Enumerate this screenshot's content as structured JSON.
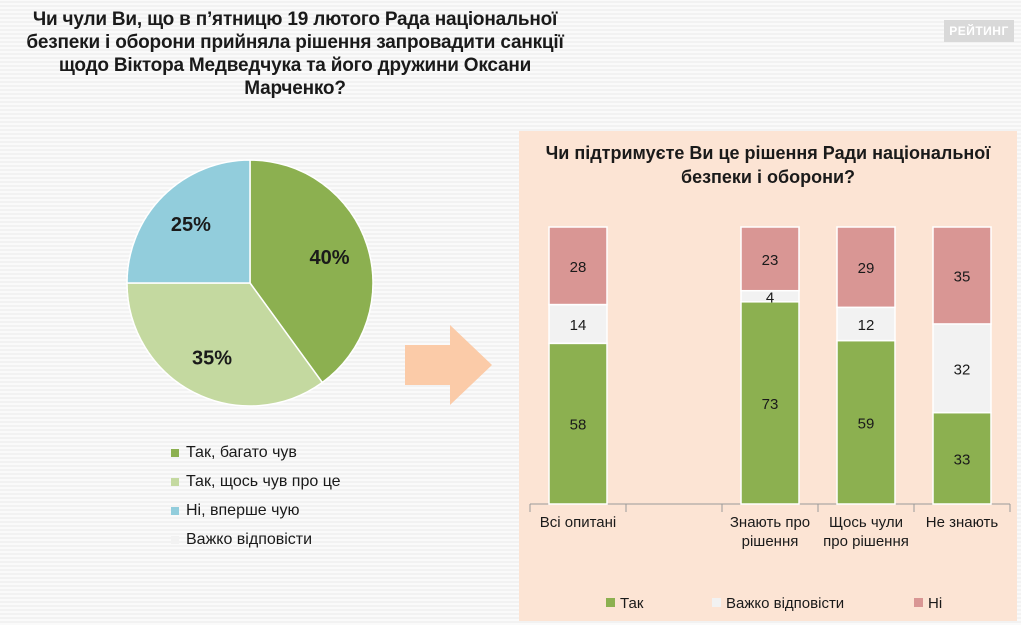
{
  "badge": "РЕЙТИНГ",
  "pie": {
    "title_lines": [
      "Чи чули Ви, що в п’ятницю 19 лютого Рада національної",
      "безпеки і оборони прийняла рішення запровадити санкції",
      "щодо Віктора Медведчука та його дружини Оксани",
      "Марченко?"
    ]
  },
  "bar": {
    "title_lines": [
      "Чи підтримуєте Ви це рішення Ради національної",
      "безпеки і оборони?"
    ]
  },
  "chart_data": [
    {
      "type": "pie",
      "title": "Чи чули Ви, що в п’ятницю 19 лютого Рада національної безпеки і оборони прийняла рішення запровадити санкції щодо Віктора Медведчука та його дружини Оксани Марченко?",
      "slices": [
        {
          "label": "Так, багато чув",
          "value": 40,
          "display": "40%",
          "color": "#8cb050"
        },
        {
          "label": "Так, щось чув про це",
          "value": 35,
          "display": "35%",
          "color": "#c4d9a0"
        },
        {
          "label": "Ні, вперше чую",
          "value": 25,
          "display": "25%",
          "color": "#92cddc"
        },
        {
          "label": "Важко відповісти",
          "value": 0,
          "display": "",
          "color": "#f2f2f2"
        }
      ]
    },
    {
      "type": "bar",
      "stacked": true,
      "title": "Чи підтримуєте Ви це рішення Ради національної безпеки і оборони?",
      "ylim": [
        0,
        100
      ],
      "categories": [
        {
          "lines": [
            "Всі опитані"
          ]
        },
        {
          "lines": [
            ""
          ]
        },
        {
          "lines": [
            "Знають про",
            "рішення"
          ]
        },
        {
          "lines": [
            "Щось чули",
            "про рішення"
          ]
        },
        {
          "lines": [
            "Не знають"
          ]
        }
      ],
      "series": [
        {
          "name": "Так",
          "color": "#8cb050",
          "values": [
            58,
            null,
            73,
            59,
            33
          ]
        },
        {
          "name": "Важко відповісти",
          "color": "#f2f2f2",
          "values": [
            14,
            null,
            4,
            12,
            32
          ]
        },
        {
          "name": "Ні",
          "color": "#d99694",
          "values": [
            28,
            null,
            23,
            29,
            35
          ]
        }
      ]
    }
  ]
}
